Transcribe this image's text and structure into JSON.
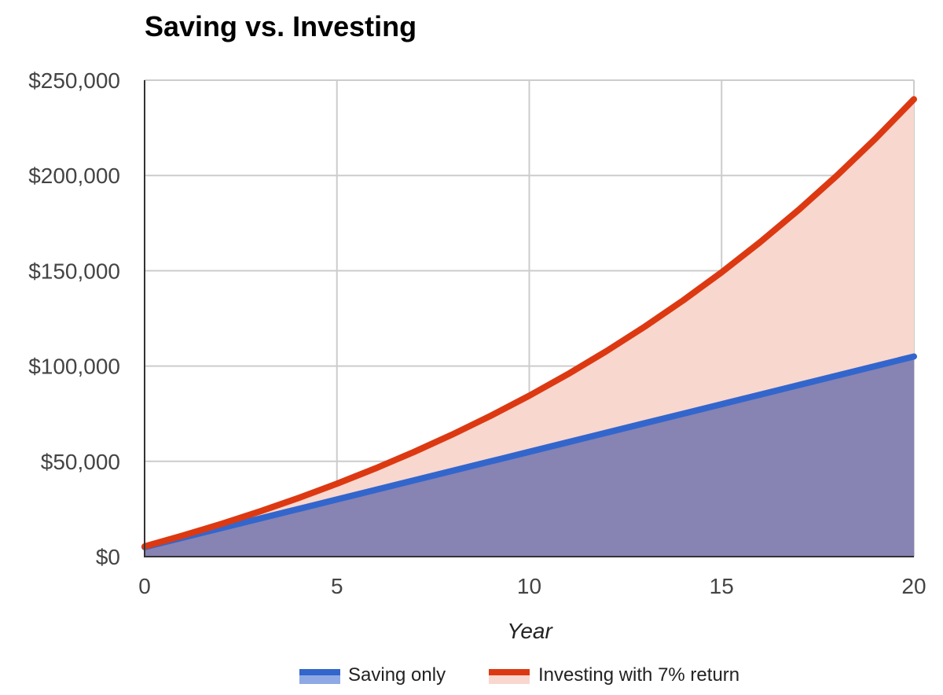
{
  "chart_data": {
    "type": "area",
    "title": "Saving vs. Investing",
    "xlabel": "Year",
    "ylabel": "",
    "xlim": [
      0,
      20
    ],
    "ylim": [
      0,
      250000
    ],
    "x_ticks": [
      "0",
      "5",
      "10",
      "15",
      "20"
    ],
    "y_ticks": [
      "$0",
      "$50,000",
      "$100,000",
      "$150,000",
      "$200,000",
      "$250,000"
    ],
    "grid": true,
    "legend_position": "bottom",
    "x": [
      0,
      1,
      2,
      3,
      4,
      5,
      6,
      7,
      8,
      9,
      10,
      11,
      12,
      13,
      14,
      15,
      16,
      17,
      18,
      19,
      20
    ],
    "series": [
      {
        "name": "Saving only",
        "color": "#3366cc",
        "values": [
          5000,
          10000,
          15000,
          20000,
          25000,
          30000,
          35000,
          40000,
          45000,
          50000,
          55000,
          60000,
          65000,
          70000,
          75000,
          80000,
          85000,
          90000,
          95000,
          100000,
          105000
        ]
      },
      {
        "name": "Investing with 7% return",
        "color": "#dc3912",
        "values": [
          5350,
          11075,
          17200,
          23754,
          30766,
          38270,
          46299,
          54890,
          64083,
          73918,
          84441,
          95700,
          107750,
          120642,
          134437,
          149197,
          164990,
          181889,
          199971,
          219318,
          240020
        ]
      }
    ]
  }
}
